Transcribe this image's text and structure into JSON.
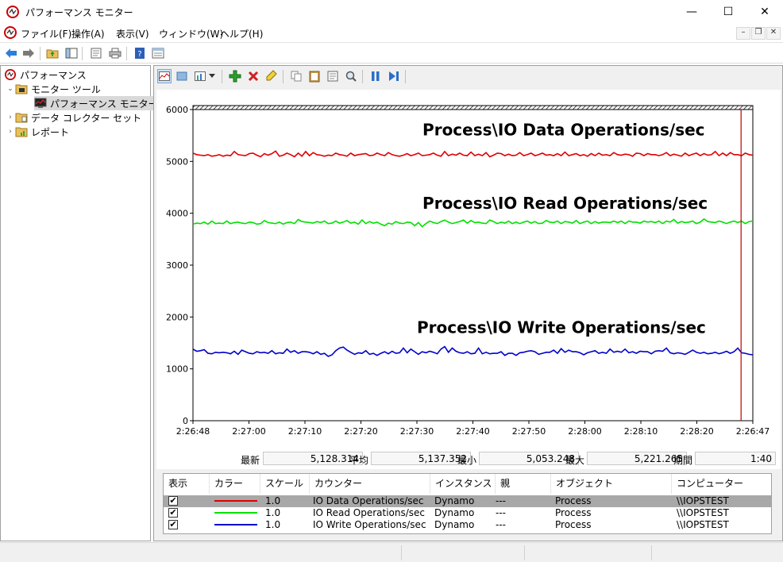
{
  "window": {
    "title": "パフォーマンス モニター",
    "buttons": {
      "minimize": "—",
      "maximize": "☐",
      "close": "✕"
    }
  },
  "menu": [
    "ファイル(F)",
    "操作(A)",
    "表示(V)",
    "ウィンドウ(W)",
    "ヘルプ(H)"
  ],
  "tree": {
    "root": "パフォーマンス",
    "monitor_tools": "モニター ツール",
    "perf_monitor": "パフォーマンス モニター",
    "data_collector_sets": "データ コレクター セット",
    "reports": "レポート"
  },
  "chart_data": {
    "type": "line",
    "x_ticks": [
      "2:26:48",
      "2:27:00",
      "2:27:10",
      "2:27:20",
      "2:27:30",
      "2:27:40",
      "2:27:50",
      "2:28:00",
      "2:28:10",
      "2:28:20",
      "2:26:47"
    ],
    "y_ticks": [
      "0",
      "1000",
      "2000",
      "3000",
      "4000",
      "5000",
      "6000"
    ],
    "ylim": [
      0,
      6000
    ],
    "grid": false,
    "series": [
      {
        "name": "Process\\IO Data Operations/sec",
        "color": "#e00000",
        "values": [
          5160,
          5130,
          5120,
          5110,
          5130,
          5100,
          5110,
          5130,
          5100,
          5120,
          5110,
          5190,
          5130,
          5120,
          5110,
          5150,
          5160,
          5120,
          5090,
          5150,
          5120,
          5150,
          5200,
          5100,
          5120,
          5160,
          5130,
          5090,
          5160,
          5100,
          5190,
          5110,
          5170,
          5130,
          5120,
          5100,
          5120,
          5110,
          5160,
          5130,
          5120,
          5100,
          5160,
          5110,
          5130,
          5140,
          5150,
          5110,
          5120,
          5160,
          5130,
          5110,
          5170,
          5130,
          5110,
          5100,
          5120,
          5150,
          5110,
          5130,
          5160,
          5110,
          5120,
          5130,
          5160,
          5120,
          5100,
          5190,
          5110,
          5140,
          5120,
          5160,
          5120,
          5110,
          5180,
          5110,
          5140,
          5110,
          5170,
          5090,
          5120,
          5160,
          5150,
          5110,
          5140,
          5110,
          5120,
          5170,
          5110,
          5130,
          5160,
          5110,
          5130,
          5160,
          5120,
          5130,
          5110,
          5150,
          5110,
          5180,
          5110,
          5130,
          5150,
          5110,
          5130,
          5100,
          5150,
          5110,
          5160,
          5120,
          5130,
          5110,
          5170,
          5130,
          5120,
          5140,
          5130,
          5100,
          5160,
          5150,
          5110,
          5150,
          5130,
          5130,
          5110,
          5130,
          5170,
          5110,
          5140,
          5120,
          5100,
          5160,
          5110,
          5140,
          5160,
          5110,
          5150,
          5120,
          5130,
          5190,
          5110,
          5160,
          5110,
          5170,
          5130,
          5130,
          5110,
          5160,
          5130,
          5120
        ]
      },
      {
        "name": "Process\\IO Read Operations/sec",
        "color": "#00e000",
        "values": [
          3790,
          3810,
          3800,
          3830,
          3790,
          3850,
          3800,
          3810,
          3800,
          3850,
          3800,
          3820,
          3830,
          3810,
          3800,
          3830,
          3820,
          3790,
          3800,
          3860,
          3820,
          3810,
          3800,
          3830,
          3790,
          3820,
          3830,
          3800,
          3880,
          3840,
          3830,
          3820,
          3810,
          3840,
          3820,
          3850,
          3800,
          3810,
          3850,
          3810,
          3830,
          3860,
          3810,
          3830,
          3790,
          3870,
          3800,
          3840,
          3810,
          3830,
          3790,
          3760,
          3810,
          3790,
          3840,
          3810,
          3800,
          3830,
          3820,
          3760,
          3820,
          3740,
          3800,
          3850,
          3820,
          3800,
          3840,
          3870,
          3830,
          3800,
          3820,
          3840,
          3870,
          3810,
          3860,
          3820,
          3830,
          3810,
          3800,
          3870,
          3840,
          3800,
          3830,
          3810,
          3850,
          3800,
          3830,
          3800,
          3830,
          3850,
          3810,
          3840,
          3800,
          3810,
          3860,
          3830,
          3820,
          3850,
          3800,
          3840,
          3830,
          3810,
          3860,
          3800,
          3830,
          3850,
          3800,
          3840,
          3810,
          3830,
          3830,
          3820,
          3850,
          3820,
          3850,
          3800,
          3850,
          3830,
          3830,
          3810,
          3850,
          3830,
          3840,
          3820,
          3850,
          3800,
          3850,
          3830,
          3880,
          3810,
          3840,
          3820,
          3830,
          3850,
          3800,
          3830,
          3890,
          3840,
          3830,
          3820,
          3850,
          3830,
          3800,
          3830,
          3850,
          3820,
          3850,
          3800,
          3840,
          3850
        ]
      },
      {
        "name": "Process\\IO Write Operations/sec",
        "color": "#0000cc",
        "values": [
          1380,
          1340,
          1350,
          1370,
          1300,
          1290,
          1320,
          1310,
          1320,
          1310,
          1290,
          1340,
          1280,
          1360,
          1330,
          1300,
          1290,
          1330,
          1310,
          1320,
          1300,
          1350,
          1290,
          1310,
          1300,
          1380,
          1320,
          1350,
          1300,
          1330,
          1330,
          1320,
          1290,
          1330,
          1280,
          1300,
          1240,
          1270,
          1350,
          1400,
          1420,
          1360,
          1320,
          1280,
          1310,
          1300,
          1350,
          1280,
          1300,
          1260,
          1300,
          1330,
          1290,
          1340,
          1300,
          1310,
          1400,
          1310,
          1380,
          1330,
          1280,
          1330,
          1310,
          1340,
          1320,
          1290,
          1380,
          1430,
          1320,
          1400,
          1340,
          1310,
          1300,
          1330,
          1290,
          1300,
          1400,
          1290,
          1320,
          1290,
          1300,
          1300,
          1330,
          1260,
          1300,
          1300,
          1260,
          1310,
          1320,
          1340,
          1350,
          1330,
          1280,
          1300,
          1320,
          1320,
          1360,
          1300,
          1390,
          1320,
          1360,
          1330,
          1330,
          1310,
          1270,
          1310,
          1330,
          1350,
          1300,
          1320,
          1300,
          1380,
          1320,
          1340,
          1320,
          1380,
          1310,
          1330,
          1300,
          1340,
          1330,
          1330,
          1290,
          1340,
          1350,
          1340,
          1400,
          1310,
          1290,
          1310,
          1300,
          1280,
          1320,
          1360,
          1320,
          1300,
          1320,
          1290,
          1300,
          1320,
          1290,
          1310,
          1340,
          1300,
          1330,
          1400,
          1310,
          1300,
          1280,
          1270
        ]
      }
    ],
    "now_marker_x_fraction": 0.979
  },
  "stats": {
    "latest_label": "最新",
    "latest": "5,128.314",
    "avg_label": "平均",
    "avg": "5,137.352",
    "min_label": "最小",
    "min": "5,053.248",
    "max_label": "最大",
    "max": "5,221.265",
    "duration_label": "期間",
    "duration": "1:40"
  },
  "legend": {
    "headers": [
      "表示",
      "カラー",
      "スケール",
      "カウンター",
      "インスタンス",
      "親",
      "オブジェクト",
      "コンピューター"
    ],
    "rows": [
      {
        "show": "✔",
        "color": "#e00000",
        "scale": "1.0",
        "counter": "IO Data Operations/sec",
        "instance": "Dynamo",
        "parent": "---",
        "object": "Process",
        "computer": "\\\\IOPSTEST"
      },
      {
        "show": "✔",
        "color": "#00e000",
        "scale": "1.0",
        "counter": "IO Read Operations/sec",
        "instance": "Dynamo",
        "parent": "---",
        "object": "Process",
        "computer": "\\\\IOPSTEST"
      },
      {
        "show": "✔",
        "color": "#0000cc",
        "scale": "1.0",
        "counter": "IO Write Operations/sec",
        "instance": "Dynamo",
        "parent": "---",
        "object": "Process",
        "computer": "\\\\IOPSTEST"
      }
    ]
  }
}
